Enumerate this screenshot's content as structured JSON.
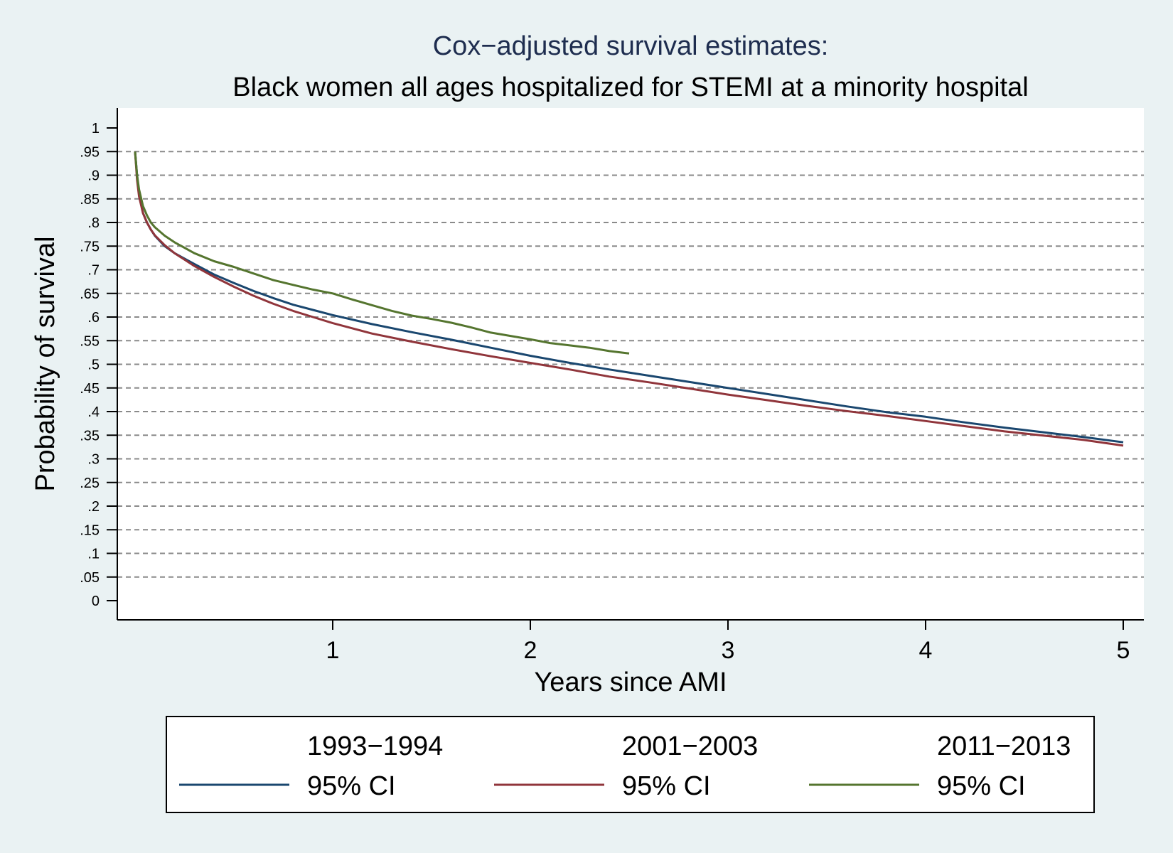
{
  "chart_data": {
    "type": "line",
    "title": "Cox−adjusted survival estimates:",
    "subtitle": "Black women all ages hospitalized for STEMI at a minority hospital",
    "xlabel": "Years since AMI",
    "ylabel": "Probability of survival",
    "xlim": [
      0,
      5
    ],
    "ylim": [
      0,
      1
    ],
    "xticks": [
      {
        "value": 1,
        "label": "1"
      },
      {
        "value": 2,
        "label": "2"
      },
      {
        "value": 3,
        "label": "3"
      },
      {
        "value": 4,
        "label": "4"
      },
      {
        "value": 5,
        "label": "5"
      }
    ],
    "yticks": [
      {
        "value": 0,
        "label": "0"
      },
      {
        "value": 0.05,
        "label": ".05"
      },
      {
        "value": 0.1,
        "label": ".1"
      },
      {
        "value": 0.15,
        "label": ".15"
      },
      {
        "value": 0.2,
        "label": ".2"
      },
      {
        "value": 0.25,
        "label": ".25"
      },
      {
        "value": 0.3,
        "label": ".3"
      },
      {
        "value": 0.35,
        "label": ".35"
      },
      {
        "value": 0.4,
        "label": ".4"
      },
      {
        "value": 0.45,
        "label": ".45"
      },
      {
        "value": 0.5,
        "label": ".5"
      },
      {
        "value": 0.55,
        "label": ".55"
      },
      {
        "value": 0.6,
        "label": ".6"
      },
      {
        "value": 0.65,
        "label": ".65"
      },
      {
        "value": 0.7,
        "label": ".7"
      },
      {
        "value": 0.75,
        "label": ".75"
      },
      {
        "value": 0.8,
        "label": ".8"
      },
      {
        "value": 0.85,
        "label": ".85"
      },
      {
        "value": 0.9,
        "label": ".9"
      },
      {
        "value": 0.95,
        "label": ".95"
      },
      {
        "value": 1,
        "label": "1"
      }
    ],
    "grid": true,
    "legend_position": "bottom",
    "series": [
      {
        "name": "1993−1994",
        "ci_label": "95% CI",
        "color": "#1a476f",
        "x": [
          0,
          0.01,
          0.02,
          0.04,
          0.06,
          0.08,
          0.1,
          0.15,
          0.2,
          0.3,
          0.4,
          0.5,
          0.6,
          0.7,
          0.8,
          0.9,
          1.0,
          1.2,
          1.4,
          1.6,
          1.8,
          2.0,
          2.2,
          2.4,
          2.6,
          2.8,
          3.0,
          3.2,
          3.4,
          3.6,
          3.8,
          4.0,
          4.2,
          4.4,
          4.6,
          4.8,
          5.0
        ],
        "y": [
          0.95,
          0.9,
          0.86,
          0.82,
          0.8,
          0.785,
          0.772,
          0.75,
          0.735,
          0.712,
          0.69,
          0.672,
          0.655,
          0.64,
          0.626,
          0.615,
          0.604,
          0.585,
          0.568,
          0.552,
          0.535,
          0.518,
          0.503,
          0.489,
          0.476,
          0.463,
          0.45,
          0.437,
          0.424,
          0.411,
          0.399,
          0.389,
          0.377,
          0.366,
          0.356,
          0.346,
          0.335
        ]
      },
      {
        "name": "2001−2003",
        "ci_label": "95% CI",
        "color": "#90353b",
        "x": [
          0,
          0.01,
          0.02,
          0.04,
          0.06,
          0.08,
          0.1,
          0.15,
          0.2,
          0.3,
          0.4,
          0.5,
          0.6,
          0.7,
          0.8,
          0.9,
          1.0,
          1.2,
          1.4,
          1.6,
          1.8,
          2.0,
          2.2,
          2.4,
          2.6,
          2.8,
          3.0,
          3.2,
          3.4,
          3.6,
          3.8,
          4.0,
          4.2,
          4.4,
          4.6,
          4.8,
          5.0
        ],
        "y": [
          0.95,
          0.89,
          0.855,
          0.82,
          0.8,
          0.785,
          0.773,
          0.752,
          0.735,
          0.708,
          0.685,
          0.664,
          0.645,
          0.628,
          0.613,
          0.6,
          0.587,
          0.565,
          0.548,
          0.532,
          0.517,
          0.503,
          0.489,
          0.474,
          0.462,
          0.449,
          0.436,
          0.424,
          0.412,
          0.401,
          0.391,
          0.38,
          0.369,
          0.358,
          0.349,
          0.34,
          0.328
        ]
      },
      {
        "name": "2011−2013",
        "ci_label": "95% CI",
        "color": "#55752f",
        "x": [
          0,
          0.01,
          0.02,
          0.04,
          0.06,
          0.08,
          0.1,
          0.15,
          0.2,
          0.3,
          0.4,
          0.5,
          0.6,
          0.7,
          0.8,
          0.9,
          1.0,
          1.1,
          1.2,
          1.3,
          1.4,
          1.5,
          1.6,
          1.7,
          1.8,
          1.9,
          2.0,
          2.1,
          2.2,
          2.3,
          2.4,
          2.5
        ],
        "y": [
          0.95,
          0.9,
          0.87,
          0.835,
          0.815,
          0.8,
          0.79,
          0.772,
          0.758,
          0.735,
          0.718,
          0.706,
          0.692,
          0.678,
          0.668,
          0.658,
          0.65,
          0.637,
          0.625,
          0.613,
          0.603,
          0.596,
          0.588,
          0.578,
          0.567,
          0.56,
          0.553,
          0.545,
          0.54,
          0.535,
          0.528,
          0.523
        ]
      }
    ]
  }
}
